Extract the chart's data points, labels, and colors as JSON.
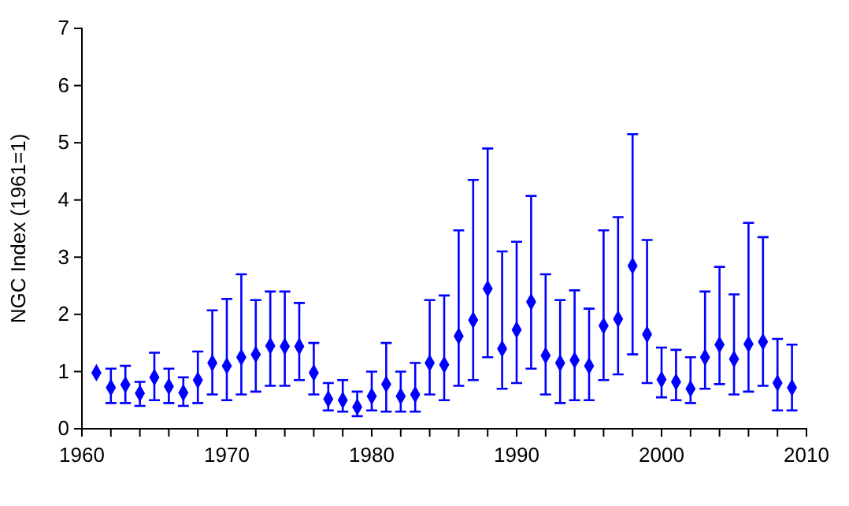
{
  "chart_data": {
    "type": "scatter",
    "ylabel": "NGC Index (1961=1)",
    "marker": "diamond",
    "x": [
      1961,
      1962,
      1963,
      1964,
      1965,
      1966,
      1967,
      1968,
      1969,
      1970,
      1971,
      1972,
      1973,
      1974,
      1975,
      1976,
      1977,
      1978,
      1979,
      1980,
      1981,
      1982,
      1983,
      1984,
      1985,
      1986,
      1987,
      1988,
      1989,
      1990,
      1991,
      1992,
      1993,
      1994,
      1995,
      1996,
      1997,
      1998,
      1999,
      2000,
      2001,
      2002,
      2003,
      2004,
      2005,
      2006,
      2007,
      2008,
      2009
    ],
    "series": [
      {
        "color": "#0000ff",
        "values": [
          0.98,
          0.72,
          0.77,
          0.62,
          0.9,
          0.74,
          0.63,
          0.85,
          1.15,
          1.1,
          1.25,
          1.3,
          1.45,
          1.44,
          1.44,
          0.98,
          0.52,
          0.5,
          0.38,
          0.57,
          0.78,
          0.57,
          0.6,
          1.15,
          1.12,
          1.62,
          1.9,
          2.45,
          1.4,
          1.73,
          2.22,
          1.28,
          1.15,
          1.2,
          1.1,
          1.8,
          1.92,
          2.85,
          1.65,
          0.86,
          0.82,
          0.7,
          1.25,
          1.47,
          1.22,
          1.48,
          1.52,
          0.8,
          0.72
        ],
        "errors": [
          null,
          [
            0.45,
            1.05
          ],
          [
            0.45,
            1.1
          ],
          [
            0.4,
            0.82
          ],
          [
            0.5,
            1.33
          ],
          [
            0.45,
            1.05
          ],
          [
            0.4,
            0.9
          ],
          [
            0.45,
            1.35
          ],
          [
            0.6,
            2.07
          ],
          [
            0.5,
            2.27
          ],
          [
            0.6,
            2.7
          ],
          [
            0.65,
            2.25
          ],
          [
            0.75,
            2.4
          ],
          [
            0.75,
            2.4
          ],
          [
            0.85,
            2.2
          ],
          [
            0.6,
            1.5
          ],
          [
            0.32,
            0.8
          ],
          [
            0.3,
            0.85
          ],
          [
            0.22,
            0.65
          ],
          [
            0.32,
            1.0
          ],
          [
            0.3,
            1.5
          ],
          [
            0.3,
            1.0
          ],
          [
            0.3,
            1.15
          ],
          [
            0.6,
            2.25
          ],
          [
            0.5,
            2.33
          ],
          [
            0.75,
            3.47
          ],
          [
            0.85,
            4.35
          ],
          [
            1.25,
            4.9
          ],
          [
            0.7,
            3.1
          ],
          [
            0.8,
            3.27
          ],
          [
            1.05,
            4.07
          ],
          [
            0.6,
            2.7
          ],
          [
            0.45,
            2.25
          ],
          [
            0.5,
            2.42
          ],
          [
            0.5,
            2.1
          ],
          [
            0.85,
            3.47
          ],
          [
            0.95,
            3.7
          ],
          [
            1.3,
            5.15
          ],
          [
            0.8,
            3.3
          ],
          [
            0.55,
            1.42
          ],
          [
            0.5,
            1.38
          ],
          [
            0.45,
            1.25
          ],
          [
            0.7,
            2.4
          ],
          [
            0.78,
            2.83
          ],
          [
            0.6,
            2.35
          ],
          [
            0.65,
            3.6
          ],
          [
            0.75,
            3.35
          ],
          [
            0.32,
            1.57
          ],
          [
            0.32,
            1.47
          ]
        ]
      }
    ],
    "xlim": [
      1960,
      2010
    ],
    "xticks": [
      1960,
      {
        "value": 1962,
        "label": null
      },
      {
        "value": 1964,
        "label": null
      },
      {
        "value": 1966,
        "label": null
      },
      {
        "value": 1968,
        "label": null
      },
      1970,
      {
        "value": 1972,
        "label": null
      },
      {
        "value": 1974,
        "label": null
      },
      {
        "value": 1976,
        "label": null
      },
      {
        "value": 1978,
        "label": null
      },
      1980,
      {
        "value": 1982,
        "label": null
      },
      {
        "value": 1984,
        "label": null
      },
      {
        "value": 1986,
        "label": null
      },
      {
        "value": 1988,
        "label": null
      },
      1990,
      {
        "value": 1992,
        "label": null
      },
      {
        "value": 1994,
        "label": null
      },
      {
        "value": 1996,
        "label": null
      },
      {
        "value": 1998,
        "label": null
      },
      2000,
      {
        "value": 2002,
        "label": null
      },
      {
        "value": 2004,
        "label": null
      },
      {
        "value": 2006,
        "label": null
      },
      {
        "value": 2008,
        "label": null
      },
      2010
    ],
    "ylim": [
      0,
      7
    ],
    "yticks": [
      0,
      1,
      2,
      3,
      4,
      5,
      6,
      7
    ]
  }
}
